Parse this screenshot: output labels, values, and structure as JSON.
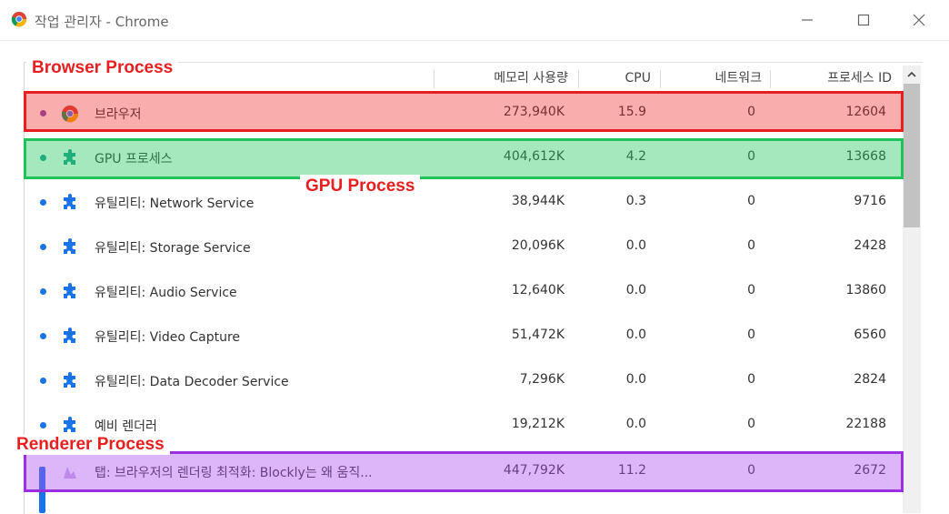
{
  "window": {
    "title": "작업 관리자 - Chrome",
    "icon": "chrome-logo-icon",
    "controls": [
      "minimize-icon",
      "maximize-icon",
      "close-icon"
    ]
  },
  "columns": {
    "memory": "메모리 사용량",
    "cpu": "CPU",
    "network": "네트워크",
    "pid": "프로세스 ID"
  },
  "rows": [
    {
      "name": "브라우저",
      "memory": "273,940K",
      "cpu": "15.9",
      "network": "0",
      "pid": "12604",
      "icon": "chrome-icon"
    },
    {
      "name": "GPU 프로세스",
      "memory": "404,612K",
      "cpu": "4.2",
      "network": "0",
      "pid": "13668",
      "icon": "puzzle-icon"
    },
    {
      "name": "유틸리티: Network Service",
      "memory": "38,944K",
      "cpu": "0.3",
      "network": "0",
      "pid": "9716",
      "icon": "puzzle-icon"
    },
    {
      "name": "유틸리티: Storage Service",
      "memory": "20,096K",
      "cpu": "0.0",
      "network": "0",
      "pid": "2428",
      "icon": "puzzle-icon"
    },
    {
      "name": "유틸리티: Audio Service",
      "memory": "12,640K",
      "cpu": "0.0",
      "network": "0",
      "pid": "13860",
      "icon": "puzzle-icon"
    },
    {
      "name": "유틸리티: Video Capture",
      "memory": "51,472K",
      "cpu": "0.0",
      "network": "0",
      "pid": "6560",
      "icon": "puzzle-icon"
    },
    {
      "name": "유틸리티: Data Decoder Service",
      "memory": "7,296K",
      "cpu": "0.0",
      "network": "0",
      "pid": "2824",
      "icon": "puzzle-icon"
    },
    {
      "name": "예비 렌더러",
      "memory": "19,212K",
      "cpu": "0.0",
      "network": "0",
      "pid": "22188",
      "icon": "puzzle-icon"
    },
    {
      "name": "탭: 브라우저의 렌더링 최적화: Blockly는 왜 움직...",
      "memory": "447,792K",
      "cpu": "11.2",
      "network": "0",
      "pid": "2672",
      "icon": "tab-favicon-icon"
    }
  ],
  "annotations": {
    "browser": "Browser Process",
    "gpu": "GPU Process",
    "renderer": "Renderer Process"
  },
  "colors": {
    "browser_highlight": "#e62020",
    "gpu_highlight": "#22c25a",
    "renderer_highlight": "#9b30e0",
    "label_text": "#e62020"
  }
}
